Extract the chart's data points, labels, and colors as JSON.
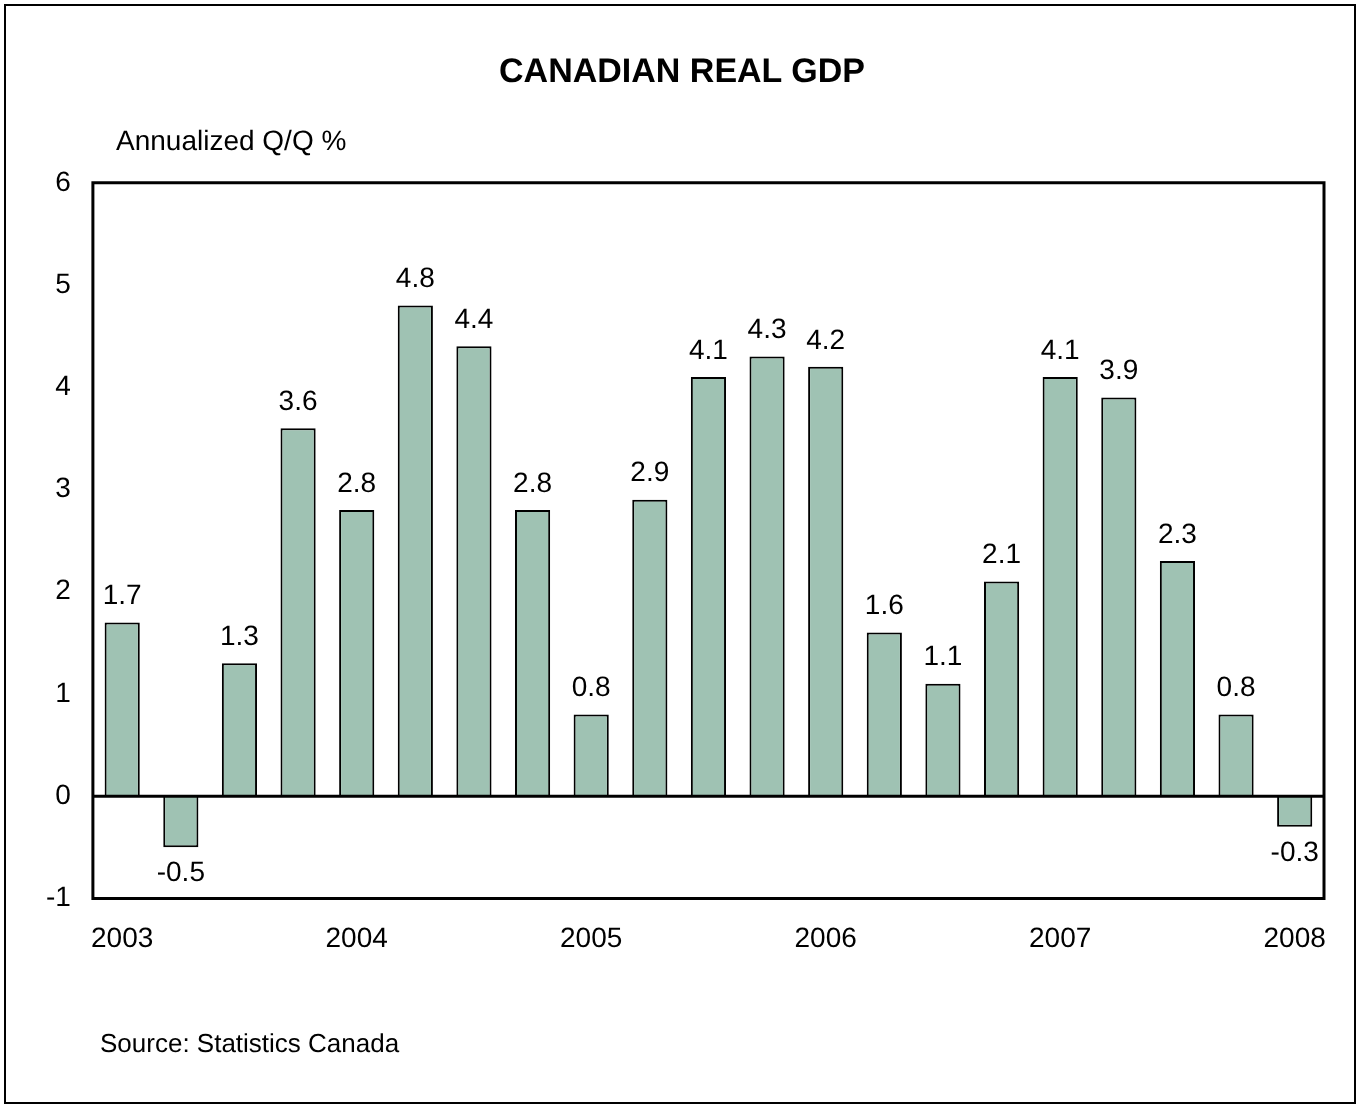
{
  "chart_data": {
    "type": "bar",
    "title": "CANADIAN REAL GDP",
    "ylabel": "Annualized Q/Q %",
    "categories": [
      "2003",
      null,
      null,
      null,
      "2004",
      null,
      null,
      null,
      "2005",
      null,
      null,
      null,
      "2006",
      null,
      null,
      null,
      "2007",
      null,
      null,
      null,
      "2008"
    ],
    "values": [
      1.7,
      -0.5,
      1.3,
      3.6,
      2.8,
      4.8,
      4.4,
      2.8,
      0.8,
      2.9,
      4.1,
      4.3,
      4.2,
      1.6,
      1.1,
      2.1,
      4.1,
      3.9,
      2.3,
      0.8,
      -0.3
    ],
    "color": "#9fc2b3",
    "ylim": [
      -1,
      6
    ],
    "yticks": [
      -1,
      0,
      1,
      2,
      3,
      4,
      5,
      6
    ],
    "legend": false,
    "data_labels": true,
    "annotations": [
      "Source: Statistics Canada"
    ]
  }
}
